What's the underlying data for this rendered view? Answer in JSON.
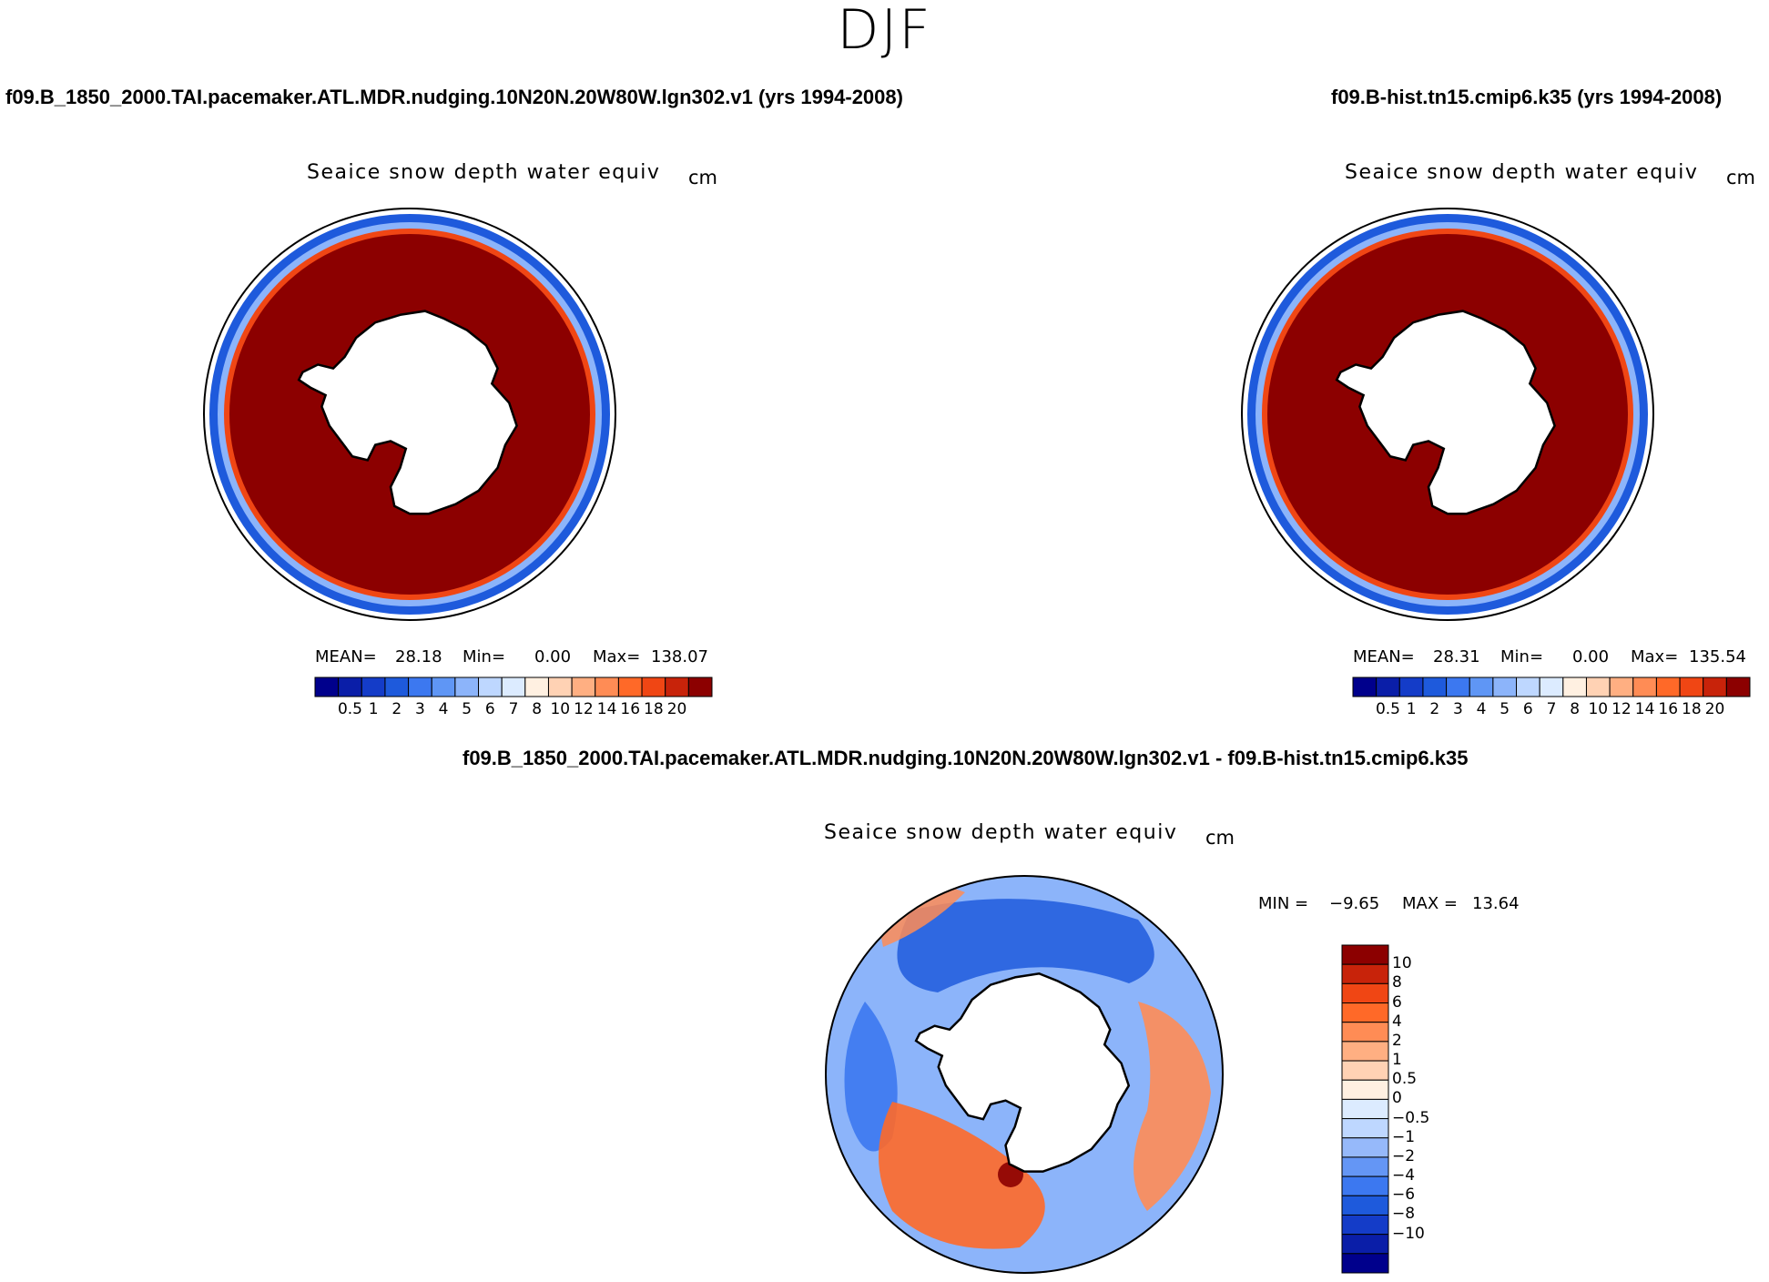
{
  "figure": {
    "title": "DJF",
    "colors": {
      "seq": [
        "#00008c",
        "#0a1ea8",
        "#143cc8",
        "#1e5adc",
        "#3c78f0",
        "#5f96f5",
        "#8cb4fa",
        "#bed7ff",
        "#dcebff",
        "#fff0e1",
        "#ffd2b4",
        "#ffaf82",
        "#ff8c55",
        "#ff6928",
        "#f04614",
        "#c8230a",
        "#8c0000"
      ],
      "div": [
        "#00008c",
        "#0a1ea8",
        "#143cc8",
        "#1e5adc",
        "#3c78f0",
        "#6496f5",
        "#96b9fa",
        "#bed7ff",
        "#dcebff",
        "#fff0e1",
        "#ffd2b4",
        "#ffaf82",
        "#ff8c55",
        "#ff6928",
        "#f04614",
        "#c8230a",
        "#8c0000"
      ]
    }
  },
  "panels": [
    {
      "case_title": "f09.B_1850_2000.TAI.pacemaker.ATL.MDR.nudging.10N20N.20W80W.lgn302.v1 (yrs 1994-2008)",
      "var_title": "Seaice snow depth water equiv",
      "units": "cm",
      "stats": {
        "mean_label": "MEAN=",
        "mean": "28.18",
        "min_label": "Min=",
        "min": "0.00",
        "max_label": "Max=",
        "max": "138.07"
      },
      "colorbar_labels": [
        "0.5",
        "1",
        "2",
        "3",
        "4",
        "5",
        "6",
        "7",
        "8",
        "10",
        "12",
        "14",
        "16",
        "18",
        "20"
      ]
    },
    {
      "case_title": "f09.B-hist.tn15.cmip6.k35 (yrs 1994-2008)",
      "var_title": "Seaice snow depth water equiv",
      "units": "cm",
      "stats": {
        "mean_label": "MEAN=",
        "mean": "28.31",
        "min_label": "Min=",
        "min": "0.00",
        "max_label": "Max=",
        "max": "135.54"
      },
      "colorbar_labels": [
        "0.5",
        "1",
        "2",
        "3",
        "4",
        "5",
        "6",
        "7",
        "8",
        "10",
        "12",
        "14",
        "16",
        "18",
        "20"
      ]
    },
    {
      "case_title": "f09.B_1850_2000.TAI.pacemaker.ATL.MDR.nudging.10N20N.20W80W.lgn302.v1 - f09.B-hist.tn15.cmip6.k35",
      "var_title": "Seaice snow depth water equiv",
      "units": "cm",
      "stats": {
        "min_label": "MIN =",
        "min": "−9.65",
        "max_label": "MAX =",
        "max": "13.64"
      },
      "colorbar_labels": [
        "10",
        "8",
        "6",
        "4",
        "2",
        "1",
        "0.5",
        "0",
        "−0.5",
        "−1",
        "−2",
        "−4",
        "−6",
        "−8",
        "−10"
      ]
    }
  ]
}
